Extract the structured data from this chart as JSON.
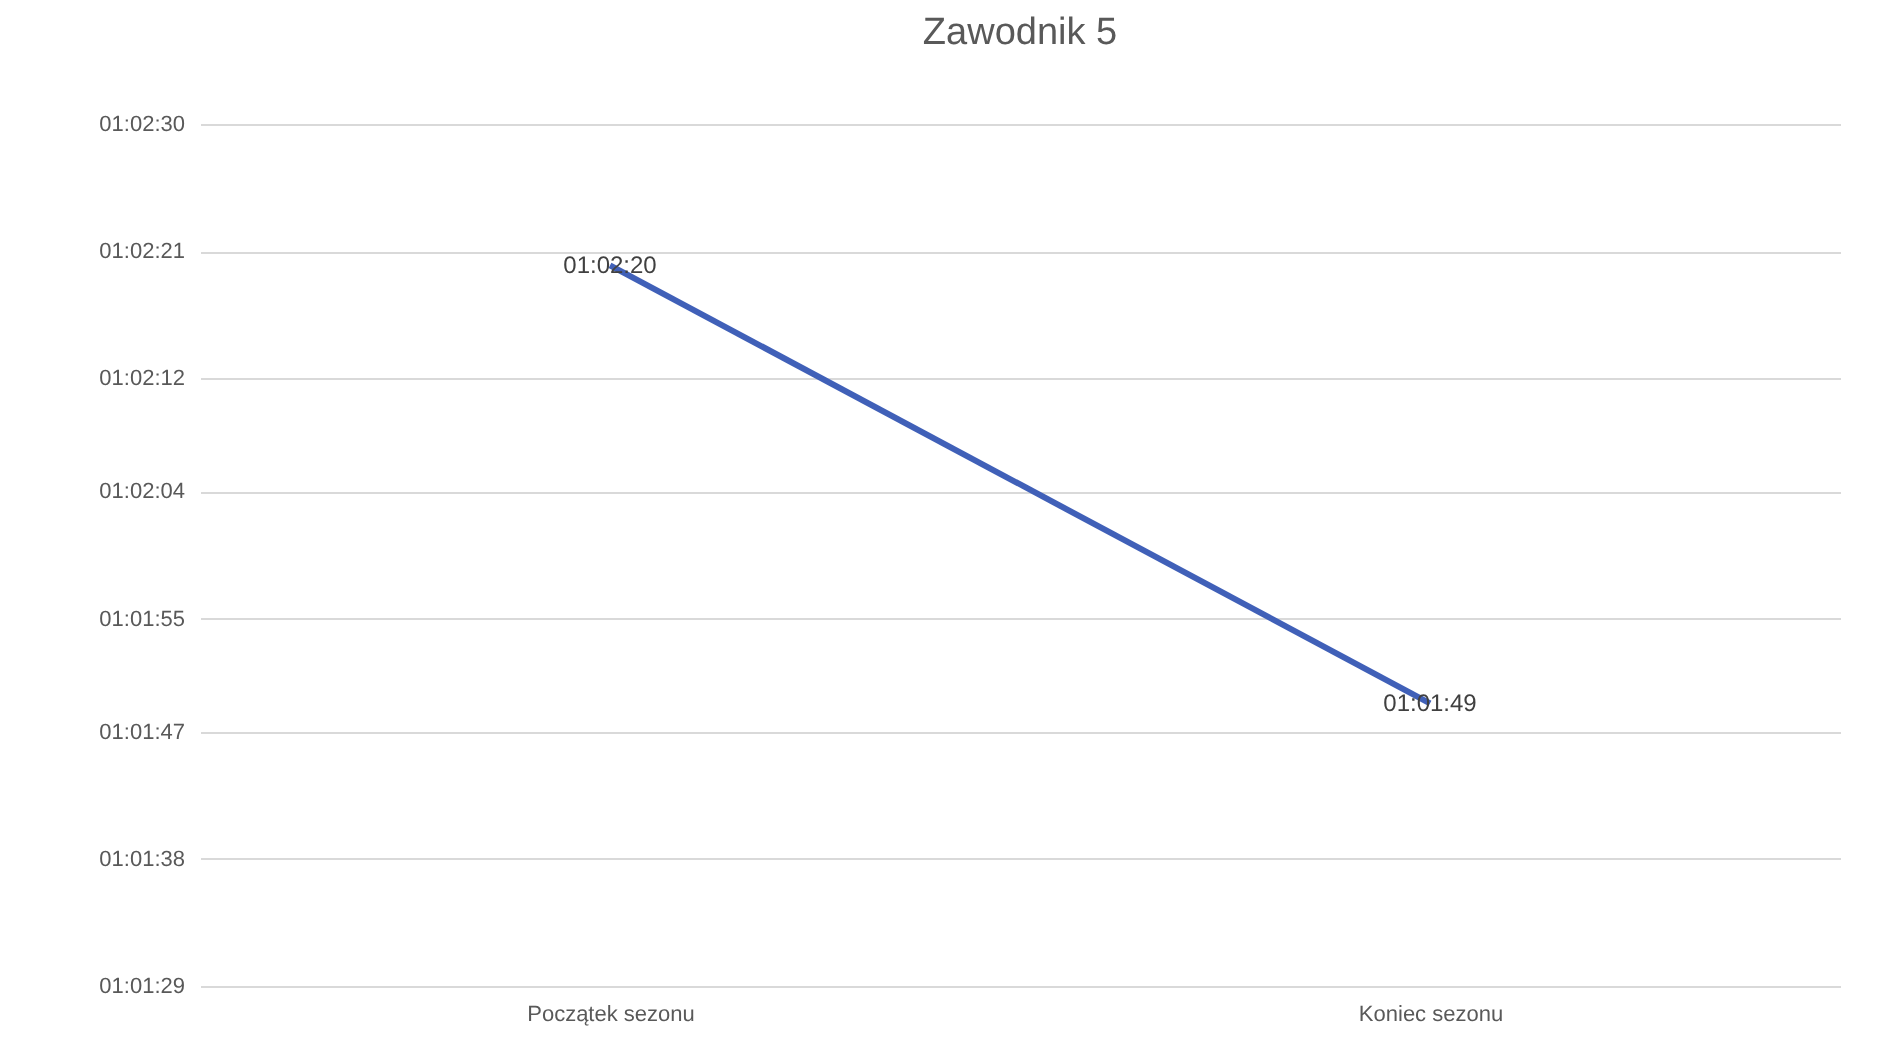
{
  "chart_data": {
    "type": "line",
    "title": "Zawodnik 5",
    "categories": [
      "Początek sezonu",
      "Koniec sezonu"
    ],
    "series": [
      {
        "color": "#4060b8",
        "values": [
          3740,
          3709
        ],
        "value_labels": [
          "01:02:20",
          "01:01:49"
        ]
      }
    ],
    "ylim": [
      3689,
      3750
    ],
    "yticks": [
      {
        "value": 3689,
        "label": "01:01:29"
      },
      {
        "value": 3698,
        "label": "01:01:38"
      },
      {
        "value": 3707,
        "label": "01:01:47"
      },
      {
        "value": 3715,
        "label": "01:01:55"
      },
      {
        "value": 3724,
        "label": "01:02:04"
      },
      {
        "value": 3732,
        "label": "01:02:12"
      },
      {
        "value": 3741,
        "label": "01:02:21"
      },
      {
        "value": 3750,
        "label": "01:02:30"
      }
    ],
    "grid": "y",
    "legend": false,
    "marker": "none",
    "line_style": "solid"
  }
}
